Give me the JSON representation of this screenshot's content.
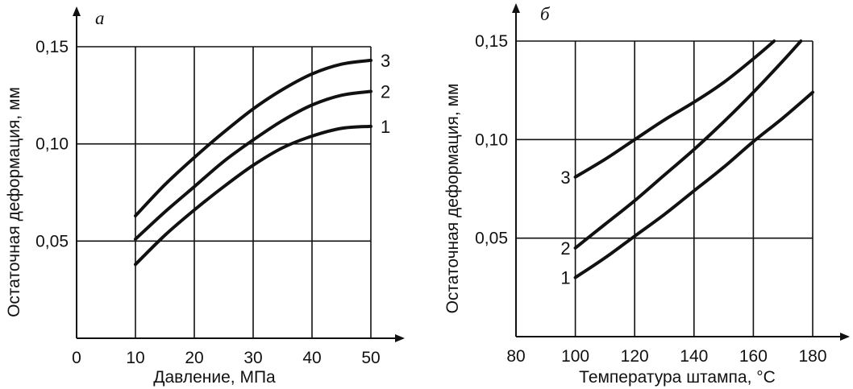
{
  "chart_data": [
    {
      "type": "line",
      "panel_label": "а",
      "xlabel": "Давление, МПа",
      "ylabel": "Остаточная деформация, мм",
      "xlim": [
        0,
        50
      ],
      "ylim": [
        0,
        0.15
      ],
      "x_ticks": [
        "0",
        "10",
        "20",
        "30",
        "40",
        "50"
      ],
      "y_ticks": [
        "0,05",
        "0,10",
        "0,15"
      ],
      "grid": true,
      "series": [
        {
          "name": "1",
          "x": [
            10,
            15,
            20,
            25,
            30,
            35,
            40,
            45,
            50
          ],
          "y": [
            0.038,
            0.053,
            0.066,
            0.078,
            0.089,
            0.098,
            0.104,
            0.108,
            0.109
          ]
        },
        {
          "name": "2",
          "x": [
            10,
            15,
            20,
            25,
            30,
            35,
            40,
            45,
            50
          ],
          "y": [
            0.051,
            0.065,
            0.078,
            0.091,
            0.102,
            0.112,
            0.12,
            0.125,
            0.127
          ]
        },
        {
          "name": "3",
          "x": [
            10,
            15,
            20,
            25,
            30,
            35,
            40,
            45,
            50
          ],
          "y": [
            0.063,
            0.079,
            0.093,
            0.106,
            0.118,
            0.128,
            0.136,
            0.141,
            0.143
          ]
        }
      ]
    },
    {
      "type": "line",
      "panel_label": "б",
      "xlabel": "Температура штампа, °С",
      "ylabel": "Остаточная деформация, мм",
      "xlim": [
        80,
        180
      ],
      "ylim": [
        0,
        0.15
      ],
      "x_ticks": [
        "80",
        "100",
        "120",
        "140",
        "160",
        "180"
      ],
      "y_ticks": [
        "0,05",
        "0,10",
        "0,15"
      ],
      "grid": true,
      "series": [
        {
          "name": "1",
          "x": [
            100,
            110,
            120,
            130,
            140,
            150,
            160,
            170,
            180
          ],
          "y": [
            0.03,
            0.04,
            0.051,
            0.062,
            0.074,
            0.086,
            0.099,
            0.111,
            0.124
          ]
        },
        {
          "name": "2",
          "x": [
            100,
            110,
            120,
            130,
            140,
            150,
            160,
            170,
            176
          ],
          "y": [
            0.045,
            0.057,
            0.069,
            0.082,
            0.095,
            0.109,
            0.124,
            0.14,
            0.15
          ]
        },
        {
          "name": "3",
          "x": [
            100,
            110,
            120,
            130,
            140,
            150,
            160,
            167
          ],
          "y": [
            0.081,
            0.09,
            0.1,
            0.11,
            0.119,
            0.129,
            0.141,
            0.15
          ]
        }
      ]
    }
  ]
}
